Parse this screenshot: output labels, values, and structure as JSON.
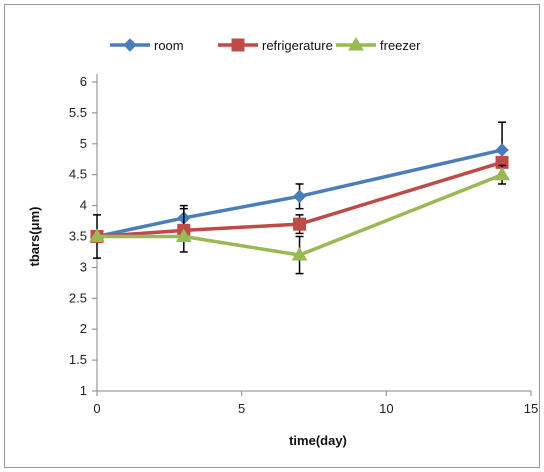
{
  "chart_data": {
    "type": "line",
    "title": "",
    "xlabel": "time(day)",
    "ylabel": "tbars(μm)",
    "xlim": [
      0,
      15
    ],
    "ylim": [
      1,
      6
    ],
    "x_ticks": [
      "0",
      "5",
      "10",
      "15"
    ],
    "y_ticks": [
      "1",
      "1.5",
      "2",
      "2.5",
      "3",
      "3.5",
      "4",
      "4.5",
      "5",
      "5.5",
      "6"
    ],
    "grid": false,
    "legend_position": "top",
    "x": [
      0,
      3,
      7,
      14
    ],
    "series": [
      {
        "name": "room",
        "color": "#4a7ebb",
        "marker": "diamond",
        "values": [
          3.5,
          3.8,
          4.15,
          4.9
        ],
        "error": [
          0.0,
          0.2,
          0.2,
          0.45
        ]
      },
      {
        "name": "refrigerature",
        "color": "#be4b48",
        "marker": "square",
        "values": [
          3.5,
          3.6,
          3.7,
          4.7
        ],
        "error": [
          0.35,
          0.35,
          0.15,
          0.0
        ]
      },
      {
        "name": "freezer",
        "color": "#98b954",
        "marker": "triangle",
        "values": [
          3.5,
          3.5,
          3.2,
          4.5
        ],
        "error": [
          0.0,
          0.0,
          0.3,
          0.15
        ]
      }
    ]
  }
}
